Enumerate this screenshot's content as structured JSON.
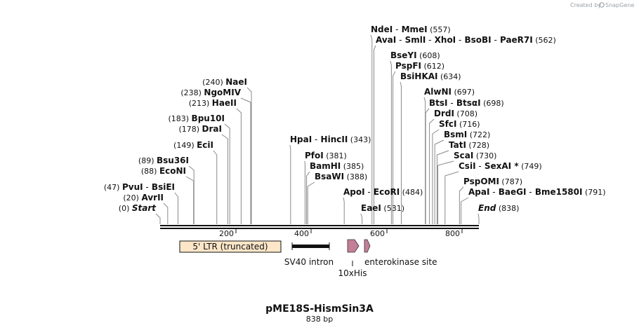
{
  "credit": "Created by",
  "brand": "SnapGene",
  "map": {
    "name": "pME18S-HismSin3A",
    "length_label": "838 bp",
    "length": 838,
    "ticks": [
      "200",
      "400",
      "600",
      "800"
    ]
  },
  "sites": [
    {
      "parts": [
        {
          "t": "NdeI"
        },
        {
          "s": "-"
        },
        {
          "t": "MmeI"
        }
      ],
      "pos": "(557)",
      "bp": 557
    },
    {
      "parts": [
        {
          "t": "AvaI"
        },
        {
          "s": "-"
        },
        {
          "t": "SmlI"
        },
        {
          "s": "-"
        },
        {
          "t": "XhoI"
        },
        {
          "s": "-"
        },
        {
          "t": "BsoBI"
        },
        {
          "s": "-"
        },
        {
          "t": "PaeR7I"
        }
      ],
      "pos": "(562)",
      "bp": 562
    },
    {
      "parts": [
        {
          "t": "BseYI"
        }
      ],
      "pos": "(608)",
      "bp": 608
    },
    {
      "parts": [
        {
          "t": "PspFI"
        }
      ],
      "pos": "(612)",
      "bp": 612
    },
    {
      "parts": [
        {
          "t": "BsiHKAI"
        }
      ],
      "pos": "(634)",
      "bp": 634
    },
    {
      "parts": [
        {
          "t": "AlwNI"
        }
      ],
      "pos": "(697)",
      "bp": 697
    },
    {
      "parts": [
        {
          "t": "BtsI"
        },
        {
          "s": "-"
        },
        {
          "t": "BtsαI"
        }
      ],
      "pos": "(698)",
      "bp": 698
    },
    {
      "parts": [
        {
          "t": "DrdI"
        }
      ],
      "pos": "(708)",
      "bp": 708
    },
    {
      "parts": [
        {
          "t": "SfcI"
        }
      ],
      "pos": "(716)",
      "bp": 716
    },
    {
      "parts": [
        {
          "t": "BsmI"
        }
      ],
      "pos": "(722)",
      "bp": 722
    },
    {
      "parts": [
        {
          "t": "TatI"
        }
      ],
      "pos": "(728)",
      "bp": 728
    },
    {
      "parts": [
        {
          "t": "ScaI"
        }
      ],
      "pos": "(730)",
      "bp": 730
    },
    {
      "parts": [
        {
          "t": "CsiI"
        },
        {
          "s": "-"
        },
        {
          "t": "SexAI *"
        }
      ],
      "pos": "(749)",
      "bp": 749
    },
    {
      "parts": [
        {
          "t": "PspOMI"
        }
      ],
      "pos": "(787)",
      "bp": 787
    },
    {
      "parts": [
        {
          "t": "ApaI"
        },
        {
          "s": "-"
        },
        {
          "t": "BaeGI"
        },
        {
          "s": "-"
        },
        {
          "t": "Bme1580I"
        }
      ],
      "pos": "(791)",
      "bp": 791
    },
    {
      "parts": [
        {
          "t": "End"
        }
      ],
      "pos": "(838)",
      "bp": 838,
      "italic": true
    },
    {
      "parts": [
        {
          "t": "HpaI"
        },
        {
          "s": "-"
        },
        {
          "t": "HincII"
        }
      ],
      "pos": "(343)",
      "bp": 343
    },
    {
      "parts": [
        {
          "t": "PfoI"
        }
      ],
      "pos": "(381)",
      "bp": 381
    },
    {
      "parts": [
        {
          "t": "BamHI"
        }
      ],
      "pos": "(385)",
      "bp": 385
    },
    {
      "parts": [
        {
          "t": "BsaWI"
        }
      ],
      "pos": "(388)",
      "bp": 388
    },
    {
      "parts": [
        {
          "t": "ApoI"
        },
        {
          "s": "-"
        },
        {
          "t": "EcoRI"
        }
      ],
      "pos": "(484)",
      "bp": 484
    },
    {
      "parts": [
        {
          "t": "EaeI"
        }
      ],
      "pos": "(531)",
      "bp": 531
    },
    {
      "parts": [
        {
          "t": "NaeI"
        }
      ],
      "pos": "(240)",
      "bp": 240
    },
    {
      "parts": [
        {
          "t": "NgoMIV"
        }
      ],
      "pos": "(238)",
      "bp": 238
    },
    {
      "parts": [
        {
          "t": "HaeII"
        }
      ],
      "pos": "(213)",
      "bp": 213
    },
    {
      "parts": [
        {
          "t": "Bpu10I"
        }
      ],
      "pos": "(183)",
      "bp": 183
    },
    {
      "parts": [
        {
          "t": "DraI"
        }
      ],
      "pos": "(178)",
      "bp": 178
    },
    {
      "parts": [
        {
          "t": "EciI"
        }
      ],
      "pos": "(149)",
      "bp": 149
    },
    {
      "parts": [
        {
          "t": "Bsu36I"
        }
      ],
      "pos": "(89)",
      "bp": 89
    },
    {
      "parts": [
        {
          "t": "EcoNI"
        }
      ],
      "pos": "(88)",
      "bp": 88
    },
    {
      "parts": [
        {
          "t": "PvuI"
        },
        {
          "s": "-"
        },
        {
          "t": "BsiEI"
        }
      ],
      "pos": "(47)",
      "bp": 47
    },
    {
      "parts": [
        {
          "t": "AvrII"
        }
      ],
      "pos": "(20)",
      "bp": 20
    },
    {
      "parts": [
        {
          "t": "Start"
        }
      ],
      "pos": "(0)",
      "bp": 0,
      "italic": true
    }
  ],
  "features": [
    {
      "label": "5' LTR (truncated)",
      "kind": "box",
      "color": "#fde6c8"
    },
    {
      "label": "SV40 intron",
      "kind": "bar",
      "color": "#111111"
    },
    {
      "label": "10xHis",
      "kind": "arrow",
      "color": "#c47f98"
    },
    {
      "label": "enterokinase site",
      "kind": "arrow",
      "color": "#c47f98"
    }
  ]
}
